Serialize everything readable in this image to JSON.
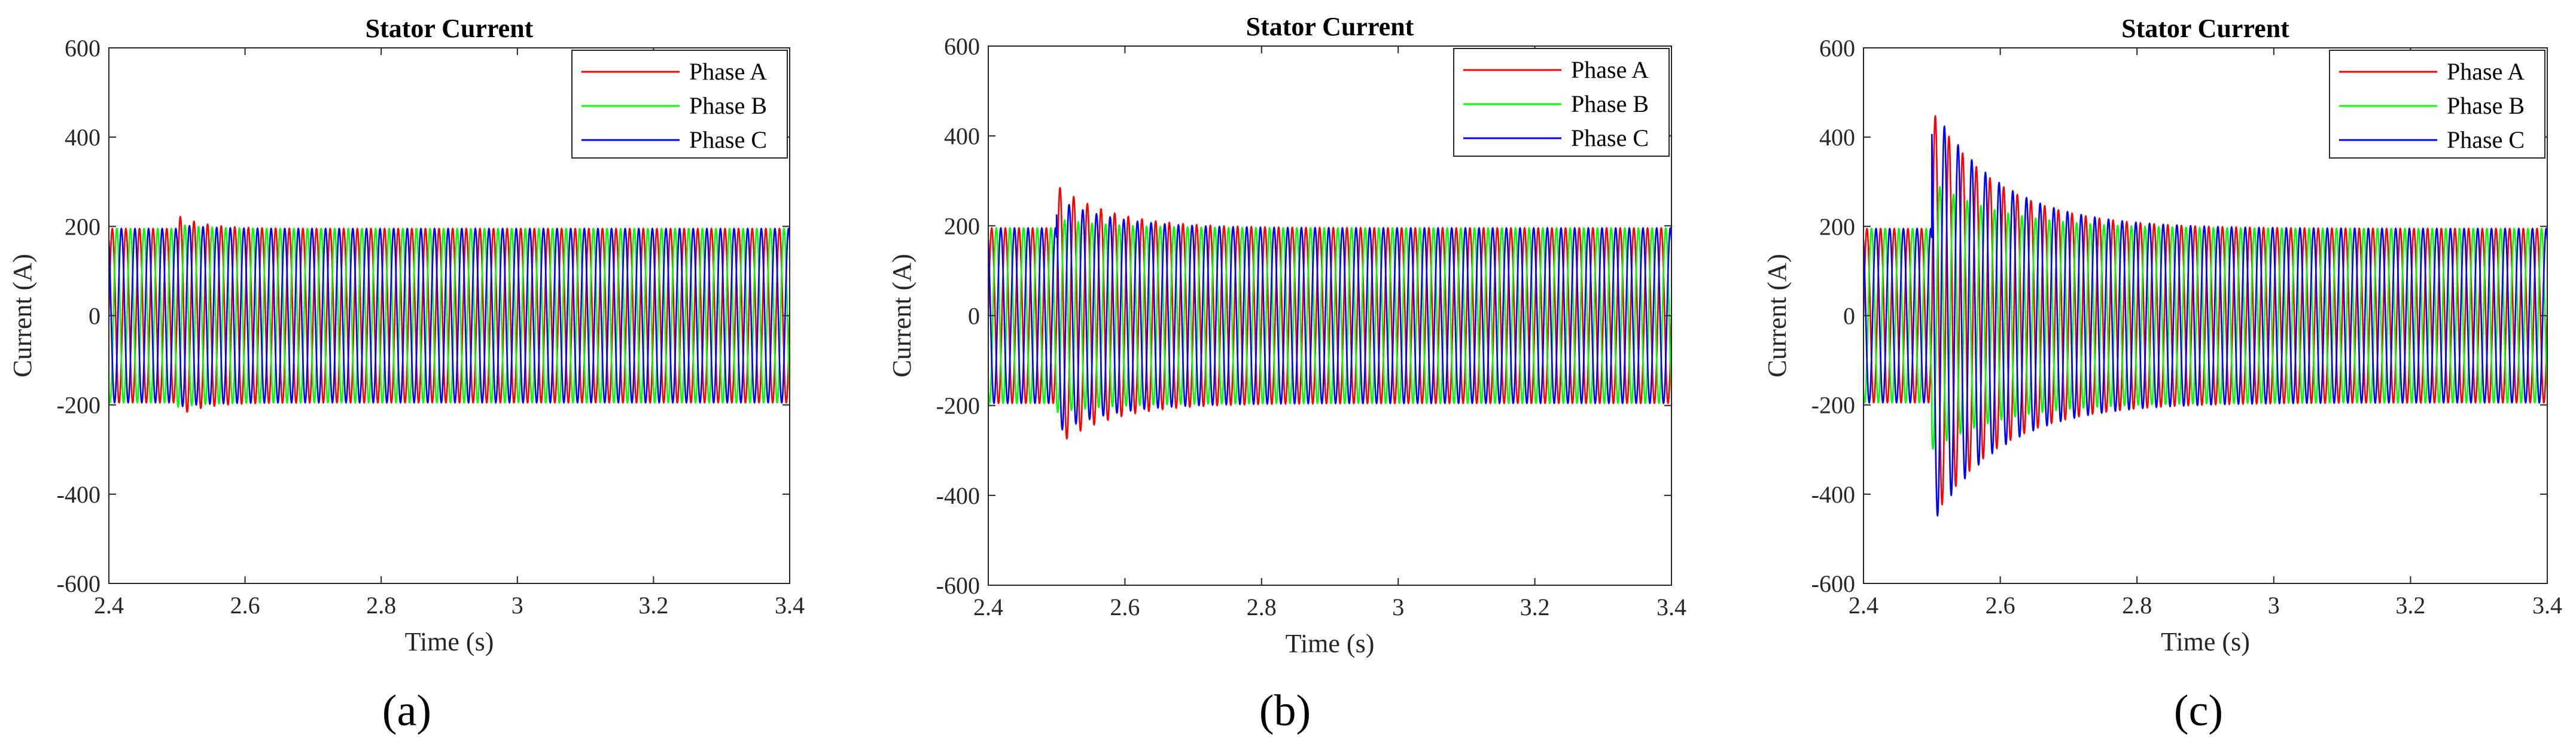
{
  "colors": {
    "phase_a": "#ff0000",
    "phase_b": "#00ff00",
    "phase_c": "#0000ff",
    "axis": "#262626"
  },
  "chart_data": [
    {
      "type": "line",
      "panel_label": "(a)",
      "title": "Stator Current",
      "xlabel": "Time (s)",
      "ylabel": "Current (A)",
      "xlim": [
        2.4,
        3.4
      ],
      "ylim": [
        -600,
        600
      ],
      "xticks": [
        2.4,
        2.6,
        2.8,
        3,
        3.2,
        3.4
      ],
      "xtick_labels": [
        "2.4",
        "2.6",
        "2.8",
        "3",
        "3.2",
        "3.4"
      ],
      "yticks": [
        -600,
        -400,
        -200,
        0,
        200,
        400,
        600
      ],
      "ytick_labels": [
        "-600",
        "-400",
        "-200",
        "0",
        "200",
        "400",
        "600"
      ],
      "legend": "top-right",
      "grid": false,
      "waveform": {
        "frequency_hz": 50,
        "steady_amplitude_a": 195,
        "disturbance_time_s": 2.5,
        "peak_current_a": {
          "phase_a": 225,
          "phase_b": 205,
          "phase_c": 205
        },
        "decay_time_constant_s": 0.04
      },
      "series": [
        {
          "name": "Phase A",
          "color": "#ff0000",
          "phase_deg": 0
        },
        {
          "name": "Phase B",
          "color": "#00ff00",
          "phase_deg": -120
        },
        {
          "name": "Phase C",
          "color": "#0000ff",
          "phase_deg": 120
        }
      ]
    },
    {
      "type": "line",
      "panel_label": "(b)",
      "title": "Stator Current",
      "xlabel": "Time (s)",
      "ylabel": "Current (A)",
      "xlim": [
        2.4,
        3.4
      ],
      "ylim": [
        -600,
        600
      ],
      "xticks": [
        2.4,
        2.6,
        2.8,
        3,
        3.2,
        3.4
      ],
      "xtick_labels": [
        "2.4",
        "2.6",
        "2.8",
        "3",
        "3.2",
        "3.4"
      ],
      "yticks": [
        -600,
        -400,
        -200,
        0,
        200,
        400,
        600
      ],
      "ytick_labels": [
        "-600",
        "-400",
        "-200",
        "0",
        "200",
        "400",
        "600"
      ],
      "legend": "top-right",
      "grid": false,
      "waveform": {
        "frequency_hz": 50,
        "steady_amplitude_a": 195,
        "disturbance_time_s": 2.5,
        "peak_current_a": {
          "phase_a": 290,
          "phase_b": 215,
          "phase_c": 260
        },
        "decay_time_constant_s": 0.08
      },
      "series": [
        {
          "name": "Phase A",
          "color": "#ff0000",
          "phase_deg": 0
        },
        {
          "name": "Phase B",
          "color": "#00ff00",
          "phase_deg": -120
        },
        {
          "name": "Phase C",
          "color": "#0000ff",
          "phase_deg": 120
        }
      ]
    },
    {
      "type": "line",
      "panel_label": "(c)",
      "title": "Stator Current",
      "xlabel": "Time (s)",
      "ylabel": "Current (A)",
      "xlim": [
        2.4,
        3.4
      ],
      "ylim": [
        -600,
        600
      ],
      "xticks": [
        2.4,
        2.6,
        2.8,
        3,
        3.2,
        3.4
      ],
      "xtick_labels": [
        "2.4",
        "2.6",
        "2.8",
        "3",
        "3.2",
        "3.4"
      ],
      "yticks": [
        -600,
        -400,
        -200,
        0,
        200,
        400,
        600
      ],
      "ytick_labels": [
        "-600",
        "-400",
        "-200",
        "0",
        "200",
        "400",
        "600"
      ],
      "legend": "top-right",
      "grid": false,
      "waveform": {
        "frequency_hz": 50,
        "steady_amplitude_a": 195,
        "disturbance_time_s": 2.5,
        "peak_current_a": {
          "phase_a": 460,
          "phase_b": 300,
          "phase_c": 470
        },
        "decay_time_constant_s": 0.1
      },
      "series": [
        {
          "name": "Phase A",
          "color": "#ff0000",
          "phase_deg": 0
        },
        {
          "name": "Phase B",
          "color": "#00ff00",
          "phase_deg": -120
        },
        {
          "name": "Phase C",
          "color": "#0000ff",
          "phase_deg": 120
        }
      ]
    }
  ]
}
